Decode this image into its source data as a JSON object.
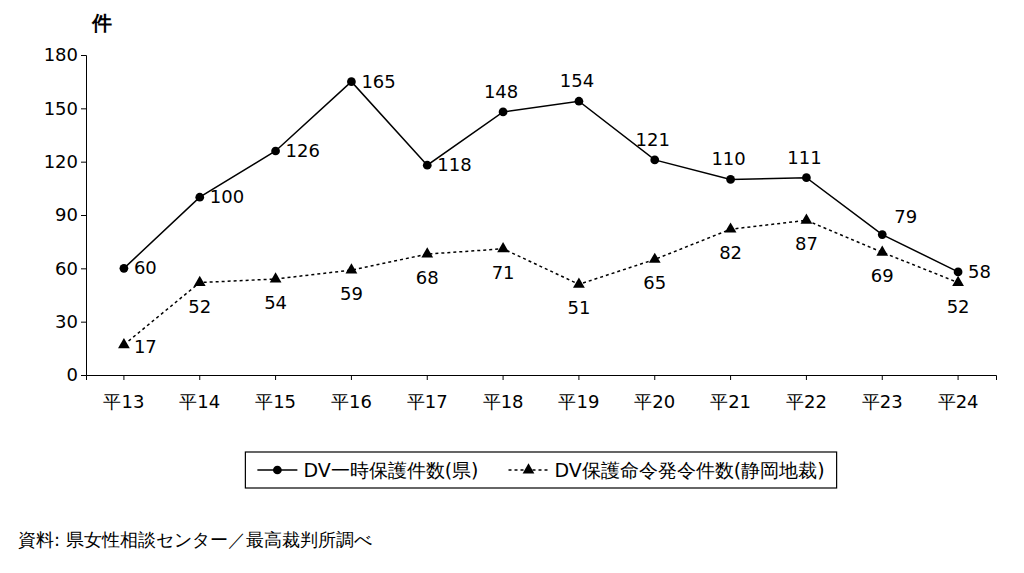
{
  "chart_data": {
    "type": "line",
    "y_label": "件",
    "annotations": [
      "資料: 県女性相談センター／最高裁判所調べ"
    ],
    "categories": [
      "平13",
      "平14",
      "平15",
      "平16",
      "平17",
      "平18",
      "平19",
      "平20",
      "平21",
      "平22",
      "平23",
      "平24"
    ],
    "series": [
      {
        "name": "DV一時保護件数(県)",
        "color": "#000000",
        "marker": "circle",
        "line_style": "solid",
        "values": [
          60,
          100,
          126,
          165,
          118,
          148,
          154,
          121,
          110,
          111,
          79,
          58
        ]
      },
      {
        "name": "DV保護命令発令件数(静岡地裁)",
        "color": "#000000",
        "marker": "triangle",
        "line_style": "dotted",
        "values": [
          17,
          52,
          54,
          59,
          68,
          71,
          51,
          65,
          82,
          87,
          69,
          52
        ]
      }
    ],
    "ylim": [
      0,
      180
    ],
    "yticks": [
      0,
      30,
      60,
      90,
      120,
      150,
      180
    ],
    "grid": false,
    "data_labels": true,
    "legend": "bottom"
  }
}
